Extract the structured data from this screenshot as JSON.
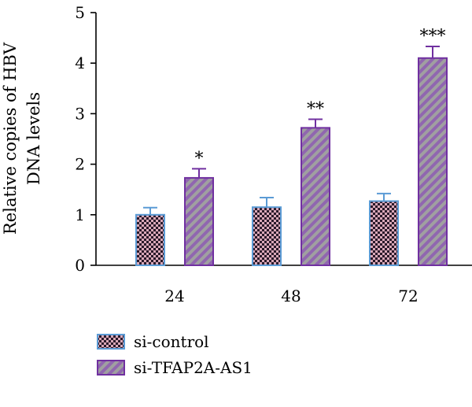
{
  "chart_data": {
    "type": "bar",
    "title": "",
    "xlabel": "",
    "ylabel_lines": [
      "Relative copies of HBV",
      "DNA levels"
    ],
    "categories": [
      "24",
      "48",
      "72"
    ],
    "ylim": [
      0,
      5
    ],
    "yticks": [
      "0",
      "1",
      "2",
      "3",
      "4",
      "5"
    ],
    "grid": false,
    "legend_position": "bottom-left",
    "series": [
      {
        "name": "si-control",
        "values": [
          1.0,
          1.15,
          1.27
        ],
        "errors": [
          0.14,
          0.19,
          0.15
        ],
        "fill": "#d9a8b8",
        "pattern_color": "#2a1a2a",
        "edge": "#5b9bd5"
      },
      {
        "name": "si-TFAP2A-AS1",
        "values": [
          1.73,
          2.72,
          4.1
        ],
        "errors": [
          0.18,
          0.17,
          0.23
        ],
        "fill": "#a0a0a0",
        "pattern_color": "#9066b0",
        "edge": "#7030a0"
      }
    ],
    "significance": [
      "*",
      "**",
      "***"
    ]
  }
}
